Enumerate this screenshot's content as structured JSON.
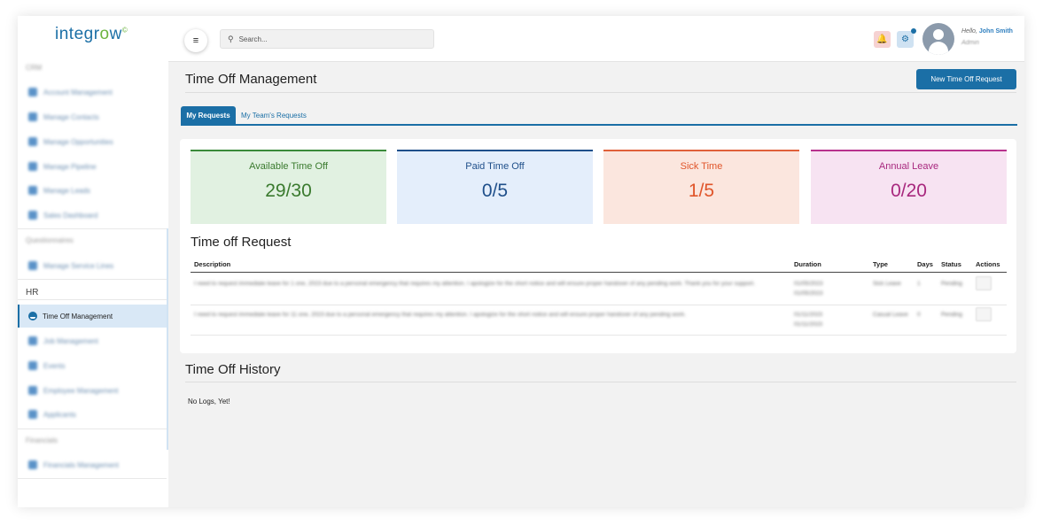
{
  "app": {
    "logo_text_1": "integr",
    "logo_text_o": "o",
    "logo_text_2": "w",
    "logo_mark": "©"
  },
  "sidebar": {
    "sections": [
      {
        "label": "CRM"
      },
      {
        "label": "Questionnaires"
      },
      {
        "label": "HR"
      },
      {
        "label": "Financials"
      }
    ],
    "crm_items": [
      "Account Management",
      "Manage Contacts",
      "Manage Opportunities",
      "Manage Pipeline",
      "Manage Leads",
      "Sales Dashboard"
    ],
    "questionnaire_items": [
      "Manage Service Lines"
    ],
    "hr_active": "Time Off Management",
    "hr_items": [
      "Job Management",
      "Events",
      "Employee Management",
      "Applicants"
    ],
    "financial_items": [
      "Financials Management"
    ]
  },
  "header": {
    "search_placeholder": "Search...",
    "greeting_prefix": "Hello, ",
    "user_name": "John Smith",
    "user_role": "Admin"
  },
  "page": {
    "title": "Time Off Management",
    "new_request_label": "New Time Off Request",
    "tabs": [
      {
        "label": "My Requests",
        "active": true
      },
      {
        "label": "My Team's Requests",
        "active": false
      }
    ]
  },
  "stats": [
    {
      "label": "Available Time Off",
      "value": "29/30",
      "color": "#3a7a2e"
    },
    {
      "label": "Paid Time Off",
      "value": "0/5",
      "color": "#1f4f8a"
    },
    {
      "label": "Sick Time",
      "value": "1/5",
      "color": "#e0552a"
    },
    {
      "label": "Annual Leave",
      "value": "0/20",
      "color": "#a8287e"
    }
  ],
  "requests": {
    "title": "Time off Request",
    "columns": [
      "Description",
      "Duration",
      "Type",
      "Days",
      "Status",
      "Actions"
    ],
    "rows": [
      {
        "description": "I need to request immediate leave for 1 one, 2023 due to a personal emergency that requires my attention. I apologize for the short notice and will ensure proper handover of any pending work. Thank you for your support.",
        "duration_start": "01/05/2023",
        "duration_end": "01/05/2023",
        "type": "Sick Leave",
        "days": "1",
        "status": "Pending"
      },
      {
        "description": "I need to request immediate leave for 11 one, 2023 due to a personal emergency that requires my attention. I apologize for the short notice and will ensure proper handover of any pending work.",
        "duration_start": "01/11/2023",
        "duration_end": "01/11/2023",
        "type": "Casual Leave",
        "days": "0",
        "status": "Pending"
      }
    ]
  },
  "history": {
    "title": "Time Off History",
    "empty_text": "No Logs, Yet!"
  },
  "icons": {
    "menu_toggle": "collapse-menu-icon",
    "search": "search-icon",
    "notification": "bell-icon",
    "settings": "gear-icon",
    "profile": "avatar-icon"
  }
}
